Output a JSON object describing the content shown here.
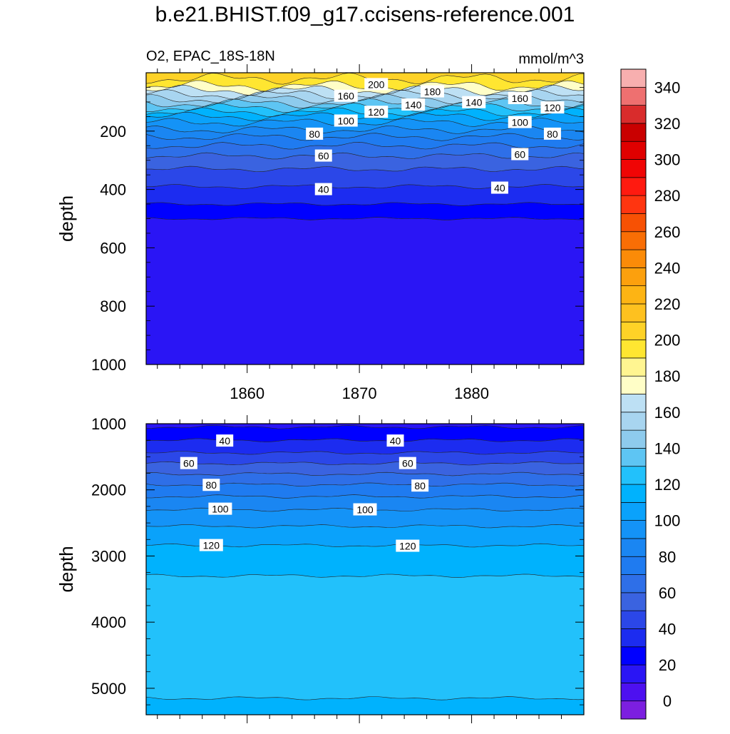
{
  "figure_title": "b.e21.BHIST.f09_g17.ccisens-reference.001",
  "chart_data": [
    {
      "type": "heatmap",
      "panel": "top",
      "left_label": "O2, EPAC_18S-18N",
      "right_label": "mmol/m^3",
      "ylabel": "depth",
      "xlabel": "",
      "x_range": [
        1851,
        1890
      ],
      "y_range": [
        0,
        1000
      ],
      "y_reversed": true,
      "x_ticks": [
        1860,
        1870,
        1880
      ],
      "y_ticks": [
        200,
        400,
        600,
        800,
        1000
      ],
      "fill_bands": [
        {
          "depth_top": 0,
          "depth_bottom": 20,
          "value": 215
        },
        {
          "depth_top": 20,
          "depth_bottom": 45,
          "value": 205
        },
        {
          "depth_top": 45,
          "depth_bottom": 60,
          "value": 185
        },
        {
          "depth_top": 60,
          "depth_bottom": 75,
          "value": 175
        },
        {
          "depth_top": 75,
          "depth_bottom": 90,
          "value": 165
        },
        {
          "depth_top": 90,
          "depth_bottom": 105,
          "value": 155
        },
        {
          "depth_top": 105,
          "depth_bottom": 120,
          "value": 145
        },
        {
          "depth_top": 120,
          "depth_bottom": 135,
          "value": 135
        },
        {
          "depth_top": 135,
          "depth_bottom": 150,
          "value": 125
        },
        {
          "depth_top": 150,
          "depth_bottom": 170,
          "value": 115
        },
        {
          "depth_top": 170,
          "depth_bottom": 195,
          "value": 105
        },
        {
          "depth_top": 195,
          "depth_bottom": 220,
          "value": 95
        },
        {
          "depth_top": 220,
          "depth_bottom": 250,
          "value": 85
        },
        {
          "depth_top": 250,
          "depth_bottom": 285,
          "value": 75
        },
        {
          "depth_top": 285,
          "depth_bottom": 330,
          "value": 65
        },
        {
          "depth_top": 330,
          "depth_bottom": 390,
          "value": 55
        },
        {
          "depth_top": 390,
          "depth_bottom": 450,
          "value": 45
        },
        {
          "depth_top": 450,
          "depth_bottom": 500,
          "value": 35
        },
        {
          "depth_top": 500,
          "depth_bottom": 1000,
          "value": 25
        }
      ],
      "contour_labels": [
        {
          "text": "200",
          "x": 1871.5,
          "depth": 40
        },
        {
          "text": "160",
          "x": 1868.8,
          "depth": 80
        },
        {
          "text": "180",
          "x": 1876.5,
          "depth": 65
        },
        {
          "text": "160",
          "x": 1884.3,
          "depth": 88
        },
        {
          "text": "140",
          "x": 1874.8,
          "depth": 110
        },
        {
          "text": "140",
          "x": 1880.2,
          "depth": 102
        },
        {
          "text": "120",
          "x": 1871.5,
          "depth": 135
        },
        {
          "text": "120",
          "x": 1887.2,
          "depth": 120
        },
        {
          "text": "100",
          "x": 1868.8,
          "depth": 165
        },
        {
          "text": "100",
          "x": 1884.3,
          "depth": 170
        },
        {
          "text": "80",
          "x": 1866.0,
          "depth": 210
        },
        {
          "text": "80",
          "x": 1887.2,
          "depth": 210
        },
        {
          "text": "60",
          "x": 1866.8,
          "depth": 285
        },
        {
          "text": "60",
          "x": 1884.3,
          "depth": 280
        },
        {
          "text": "40",
          "x": 1866.8,
          "depth": 400
        },
        {
          "text": "40",
          "x": 1882.5,
          "depth": 395
        }
      ]
    },
    {
      "type": "heatmap",
      "panel": "bottom",
      "ylabel": "depth",
      "xlabel": "",
      "x_range": [
        1851,
        1890
      ],
      "y_range": [
        1000,
        5400
      ],
      "y_reversed": true,
      "x_ticks": [
        1860,
        1870,
        1880
      ],
      "y_ticks": [
        1000,
        2000,
        3000,
        4000,
        5000
      ],
      "fill_bands": [
        {
          "depth_top": 1000,
          "depth_bottom": 1050,
          "value": 25
        },
        {
          "depth_top": 1050,
          "depth_bottom": 1250,
          "value": 35
        },
        {
          "depth_top": 1250,
          "depth_bottom": 1440,
          "value": 45
        },
        {
          "depth_top": 1440,
          "depth_bottom": 1600,
          "value": 55
        },
        {
          "depth_top": 1600,
          "depth_bottom": 1760,
          "value": 65
        },
        {
          "depth_top": 1760,
          "depth_bottom": 1920,
          "value": 75
        },
        {
          "depth_top": 1920,
          "depth_bottom": 2100,
          "value": 85
        },
        {
          "depth_top": 2100,
          "depth_bottom": 2300,
          "value": 95
        },
        {
          "depth_top": 2300,
          "depth_bottom": 2550,
          "value": 105
        },
        {
          "depth_top": 2550,
          "depth_bottom": 2840,
          "value": 115
        },
        {
          "depth_top": 2840,
          "depth_bottom": 3300,
          "value": 125
        },
        {
          "depth_top": 3300,
          "depth_bottom": 5150,
          "value": 135
        },
        {
          "depth_top": 5150,
          "depth_bottom": 5400,
          "value": 125
        }
      ],
      "contour_labels": [
        {
          "text": "40",
          "x": 1858.0,
          "depth": 1260
        },
        {
          "text": "40",
          "x": 1873.2,
          "depth": 1260
        },
        {
          "text": "60",
          "x": 1854.8,
          "depth": 1600
        },
        {
          "text": "60",
          "x": 1874.3,
          "depth": 1600
        },
        {
          "text": "80",
          "x": 1856.8,
          "depth": 1930
        },
        {
          "text": "80",
          "x": 1875.4,
          "depth": 1940
        },
        {
          "text": "100",
          "x": 1857.6,
          "depth": 2290
        },
        {
          "text": "100",
          "x": 1870.5,
          "depth": 2300
        },
        {
          "text": "120",
          "x": 1856.8,
          "depth": 2840
        },
        {
          "text": "120",
          "x": 1874.3,
          "depth": 2850
        }
      ]
    }
  ],
  "colorbar": {
    "levels": [
      0,
      10,
      20,
      30,
      40,
      50,
      60,
      70,
      80,
      90,
      100,
      110,
      120,
      130,
      140,
      150,
      160,
      170,
      180,
      190,
      200,
      210,
      220,
      230,
      240,
      250,
      260,
      270,
      280,
      290,
      300,
      310,
      320,
      330,
      340,
      350,
      360
    ],
    "tick_labels": [
      0,
      20,
      40,
      60,
      80,
      100,
      120,
      140,
      160,
      180,
      200,
      220,
      240,
      260,
      280,
      300,
      320,
      340
    ],
    "colors": [
      "#7c1fe0",
      "#4d10f0",
      "#2a15f5",
      "#0000ff",
      "#1c2cf0",
      "#2b47e8",
      "#3a63e0",
      "#2e6fe8",
      "#1f7bf0",
      "#1a86f2",
      "#1493f7",
      "#0aa2fb",
      "#00b2fd",
      "#22c1fb",
      "#5ec5f3",
      "#8ecbed",
      "#a8d5f0",
      "#bde0f4",
      "#fffec7",
      "#fff591",
      "#ffe631",
      "#fed227",
      "#fec11f",
      "#fdb414",
      "#fca00d",
      "#fb8b08",
      "#f96e05",
      "#f75104",
      "#ff3510",
      "#ff1a10",
      "#f00505",
      "#e00000",
      "#c90000",
      "#d92c2c",
      "#ee7070",
      "#f7afaf"
    ]
  }
}
